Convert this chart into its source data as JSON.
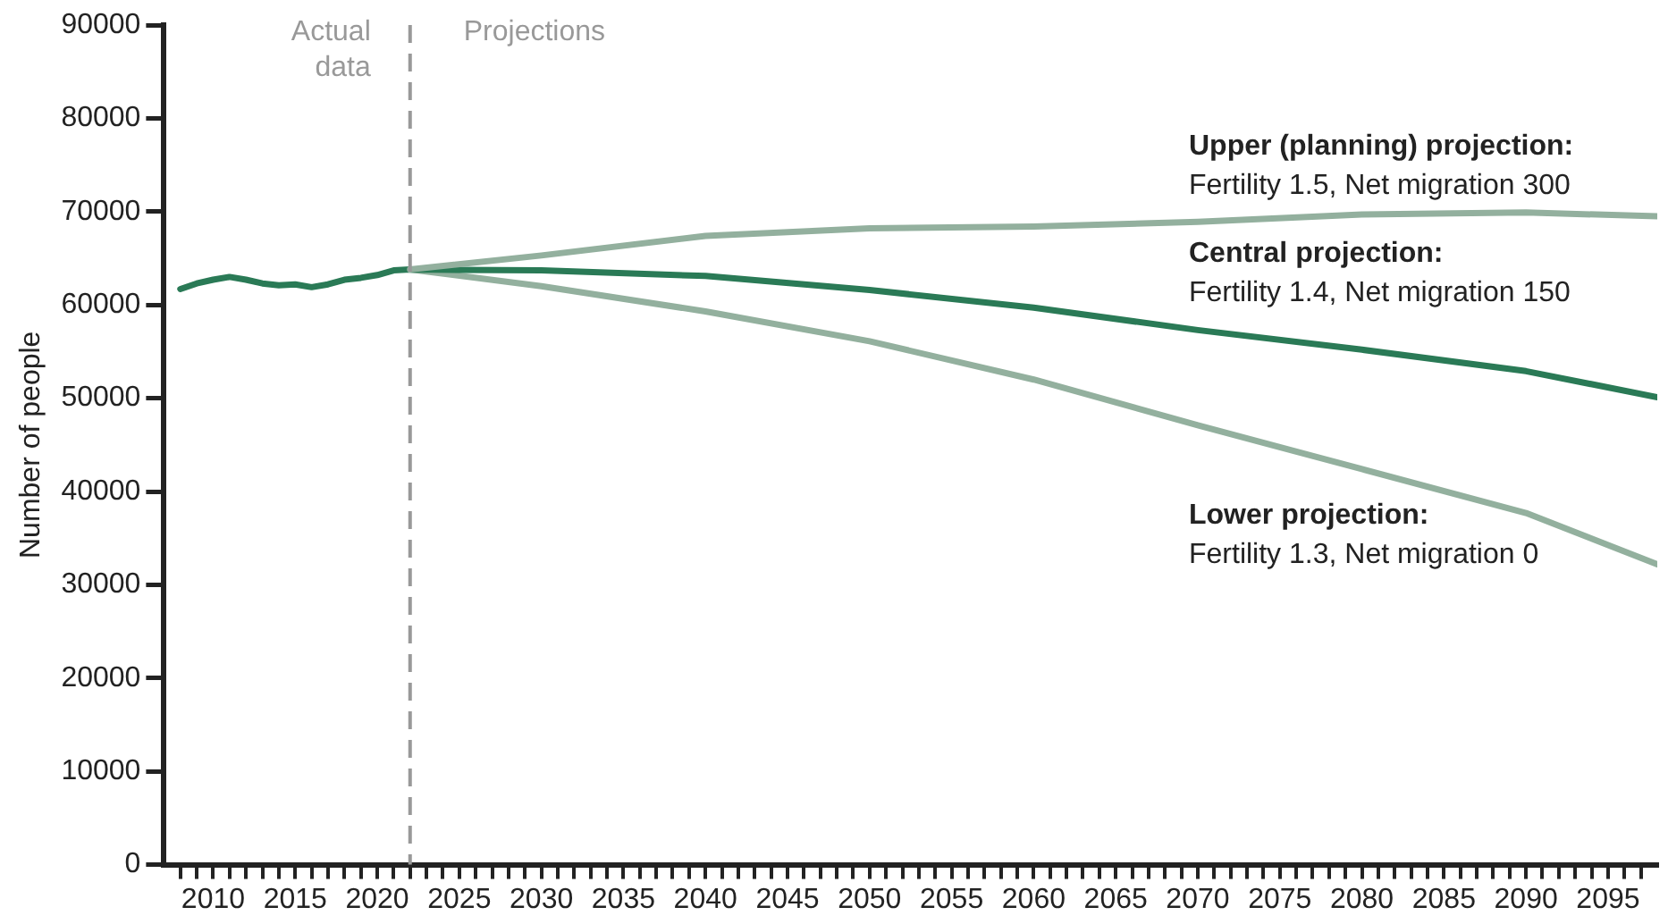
{
  "chart_data": {
    "type": "line",
    "ylabel": "Number of people",
    "marker": "none",
    "legend": false,
    "grid": false,
    "xlim": [
      2007,
      2098
    ],
    "xticks": [
      {
        "value": 2008,
        "label": null
      },
      {
        "value": 2009,
        "label": null
      },
      2010,
      {
        "value": 2011,
        "label": null
      },
      {
        "value": 2012,
        "label": null
      },
      {
        "value": 2013,
        "label": null
      },
      {
        "value": 2014,
        "label": null
      },
      2015,
      {
        "value": 2016,
        "label": null
      },
      {
        "value": 2017,
        "label": null
      },
      {
        "value": 2018,
        "label": null
      },
      {
        "value": 2019,
        "label": null
      },
      2020,
      {
        "value": 2021,
        "label": null
      },
      {
        "value": 2022,
        "label": null
      },
      {
        "value": 2023,
        "label": null
      },
      {
        "value": 2024,
        "label": null
      },
      2025,
      {
        "value": 2026,
        "label": null
      },
      {
        "value": 2027,
        "label": null
      },
      {
        "value": 2028,
        "label": null
      },
      {
        "value": 2029,
        "label": null
      },
      2030,
      {
        "value": 2031,
        "label": null
      },
      {
        "value": 2032,
        "label": null
      },
      {
        "value": 2033,
        "label": null
      },
      {
        "value": 2034,
        "label": null
      },
      2035,
      {
        "value": 2036,
        "label": null
      },
      {
        "value": 2037,
        "label": null
      },
      {
        "value": 2038,
        "label": null
      },
      {
        "value": 2039,
        "label": null
      },
      2040,
      {
        "value": 2041,
        "label": null
      },
      {
        "value": 2042,
        "label": null
      },
      {
        "value": 2043,
        "label": null
      },
      {
        "value": 2044,
        "label": null
      },
      2045,
      {
        "value": 2046,
        "label": null
      },
      {
        "value": 2047,
        "label": null
      },
      {
        "value": 2048,
        "label": null
      },
      {
        "value": 2049,
        "label": null
      },
      2050,
      {
        "value": 2051,
        "label": null
      },
      {
        "value": 2052,
        "label": null
      },
      {
        "value": 2053,
        "label": null
      },
      {
        "value": 2054,
        "label": null
      },
      2055,
      {
        "value": 2056,
        "label": null
      },
      {
        "value": 2057,
        "label": null
      },
      {
        "value": 2058,
        "label": null
      },
      {
        "value": 2059,
        "label": null
      },
      2060,
      {
        "value": 2061,
        "label": null
      },
      {
        "value": 2062,
        "label": null
      },
      {
        "value": 2063,
        "label": null
      },
      {
        "value": 2064,
        "label": null
      },
      2065,
      {
        "value": 2066,
        "label": null
      },
      {
        "value": 2067,
        "label": null
      },
      {
        "value": 2068,
        "label": null
      },
      {
        "value": 2069,
        "label": null
      },
      2070,
      {
        "value": 2071,
        "label": null
      },
      {
        "value": 2072,
        "label": null
      },
      {
        "value": 2073,
        "label": null
      },
      {
        "value": 2074,
        "label": null
      },
      2075,
      {
        "value": 2076,
        "label": null
      },
      {
        "value": 2077,
        "label": null
      },
      {
        "value": 2078,
        "label": null
      },
      {
        "value": 2079,
        "label": null
      },
      2080,
      {
        "value": 2081,
        "label": null
      },
      {
        "value": 2082,
        "label": null
      },
      {
        "value": 2083,
        "label": null
      },
      {
        "value": 2084,
        "label": null
      },
      2085,
      {
        "value": 2086,
        "label": null
      },
      {
        "value": 2087,
        "label": null
      },
      {
        "value": 2088,
        "label": null
      },
      {
        "value": 2089,
        "label": null
      },
      2090,
      {
        "value": 2091,
        "label": null
      },
      {
        "value": 2092,
        "label": null
      },
      {
        "value": 2093,
        "label": null
      },
      {
        "value": 2094,
        "label": null
      },
      2095,
      {
        "value": 2096,
        "label": null
      },
      {
        "value": 2097,
        "label": null
      }
    ],
    "ylim": [
      0,
      90000
    ],
    "yticks": [
      0,
      10000,
      20000,
      30000,
      40000,
      50000,
      60000,
      70000,
      80000,
      90000
    ],
    "series": [
      {
        "name": "Upper (planning) projection:\nFertility 1.5, Net migration 300",
        "color": "#93b09e",
        "x": [
          2022,
          2030,
          2040,
          2050,
          2060,
          2070,
          2080,
          2090,
          2098
        ],
        "values": [
          63800,
          65300,
          67400,
          68200,
          68400,
          68900,
          69700,
          69900,
          69500
        ]
      },
      {
        "name": "Central projection:\nFertility 1.4, Net migration 150",
        "color": "#2a7a56",
        "x": [
          2008,
          2009,
          2010,
          2011,
          2012,
          2013,
          2014,
          2015,
          2016,
          2017,
          2018,
          2019,
          2020,
          2021,
          2022,
          2030,
          2040,
          2050,
          2060,
          2070,
          2080,
          2090,
          2098
        ],
        "values": [
          61700,
          62300,
          62700,
          63000,
          62700,
          62300,
          62100,
          62200,
          61900,
          62200,
          62700,
          62900,
          63200,
          63700,
          63800,
          63700,
          63100,
          61600,
          59700,
          57300,
          55200,
          52900,
          50100
        ]
      },
      {
        "name": "Lower projection:\nFertility 1.3, Net migration 0",
        "color": "#93b09e",
        "x": [
          2022,
          2030,
          2040,
          2050,
          2060,
          2070,
          2080,
          2090,
          2098
        ],
        "values": [
          63800,
          62000,
          59300,
          56100,
          52000,
          47100,
          42400,
          37700,
          32200
        ]
      }
    ],
    "ref_lines": [
      {
        "axis": "x",
        "value": 2022,
        "label": "Actual data",
        "color": "#999999",
        "line_style": "dashed"
      }
    ],
    "annotations": [
      "Projections"
    ]
  }
}
